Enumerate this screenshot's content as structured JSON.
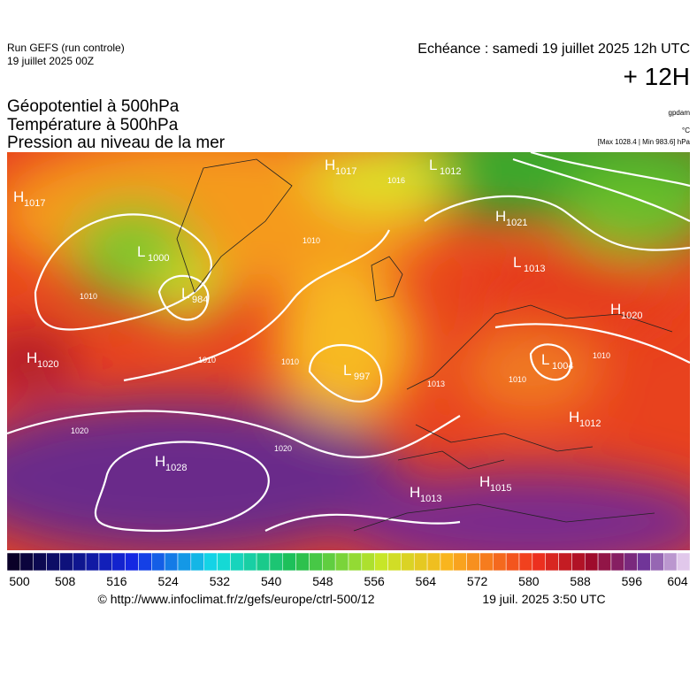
{
  "header": {
    "run": "Run GEFS (run controle)",
    "run_date": "19 juillet 2025 00Z",
    "valid": "Echéance : samedi 19 juillet 2025 12h UTC",
    "lead": "+ 12H",
    "fields": [
      "Géopotentiel à 500hPa",
      "Température à 500hPa",
      "Pression au niveau de la mer"
    ],
    "units": {
      "geopotential": "gpdam",
      "temperature": "°C",
      "pressure": "[Max 1028.4 | Min 983.6] hPa"
    }
  },
  "map": {
    "systems": [
      {
        "type": "H",
        "value": 1017
      },
      {
        "type": "H",
        "value": 1017
      },
      {
        "type": "L",
        "value": 1012
      },
      {
        "type": "H",
        "value": 1021
      },
      {
        "type": "L",
        "value": 1013
      },
      {
        "type": "H",
        "value": 1020
      },
      {
        "type": "L",
        "value": 1004
      },
      {
        "type": "H",
        "value": 1012
      },
      {
        "type": "H",
        "value": 1015
      },
      {
        "type": "H",
        "value": 1013
      },
      {
        "type": "H",
        "value": 1028
      },
      {
        "type": "H",
        "value": 1020
      },
      {
        "type": "L",
        "value": 984
      },
      {
        "type": "L",
        "value": 997
      },
      {
        "type": "L",
        "value": 1000
      }
    ],
    "isobar_labels": [
      1016,
      1010,
      1010,
      1020,
      1020,
      1010,
      1013,
      1010,
      1010,
      1010
    ]
  },
  "colorbar": {
    "ticks": [
      500,
      508,
      516,
      524,
      532,
      540,
      548,
      556,
      564,
      572,
      580,
      588,
      596,
      604
    ]
  },
  "footer": {
    "source": "© http://www.infoclimat.fr/z/gefs/europe/ctrl-500/12",
    "generated": "19 juil. 2025  3:50 UTC"
  }
}
